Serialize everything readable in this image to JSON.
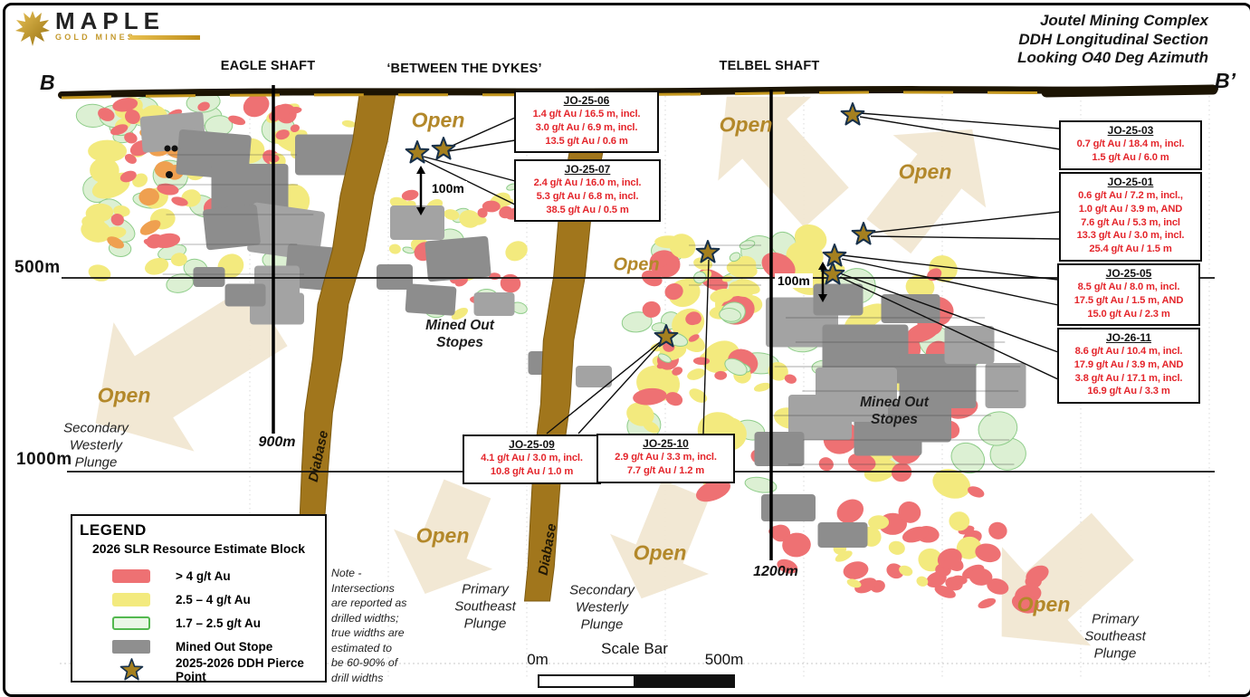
{
  "header": {
    "logo_text": "MAPLE",
    "logo_sub": "GOLD MINES",
    "title_lines": [
      "Joutel Mining Complex",
      "DDH Longitudinal Section",
      "Looking O40 Deg Azimuth"
    ]
  },
  "section_markers": {
    "left": "B",
    "right": "B’"
  },
  "shaft_labels": {
    "eagle": "EAGLE SHAFT",
    "between": "‘BETWEEN THE DYKES’",
    "telbel": "TELBEL SHAFT"
  },
  "depth_labels": {
    "d500": "500m",
    "d1000": "1000m",
    "eagle_bottom": "900m",
    "telbel_bottom": "1200m"
  },
  "scale_markers": {
    "left": "100m",
    "right": "100m"
  },
  "open_label": "Open",
  "diabase_label": "Diabase",
  "mined_out_label": "Mined Out\nStopes",
  "plunge_labels": {
    "secondary": "Secondary\nWesterly\nPlunge",
    "primary": "Primary\nSoutheast\nPlunge"
  },
  "drill_boxes": [
    {
      "id": "JO-25-06",
      "lines": [
        "1.4 g/t Au / 16.5 m, incl.",
        "3.0 g/t Au / 6.9 m, incl.",
        "13.5 g/t Au / 0.6 m"
      ]
    },
    {
      "id": "JO-25-07",
      "lines": [
        "2.4 g/t Au / 16.0 m, incl.",
        "5.3 g/t Au / 6.8 m, incl.",
        "38.5 g/t Au / 0.5 m"
      ]
    },
    {
      "id": "JO-25-03",
      "lines": [
        "0.7 g/t Au / 18.4 m, incl.",
        "1.5 g/t Au / 6.0 m"
      ]
    },
    {
      "id": "JO-25-01",
      "lines": [
        "0.6 g/t Au / 7.2 m, incl.,",
        "1.0 g/t Au / 3.9 m, AND",
        "7.6 g/t Au / 5.3 m, incl",
        "13.3 g/t Au / 3.0 m, incl.",
        "25.4 g/t Au / 1.5 m"
      ]
    },
    {
      "id": "JO-25-05",
      "lines": [
        "8.5 g/t Au / 8.0 m, incl.",
        "17.5 g/t Au / 1.5 m, AND",
        "15.0 g/t Au / 2.3 m"
      ]
    },
    {
      "id": "JO-26-11",
      "lines": [
        "8.6 g/t Au / 10.4 m, incl.",
        "17.9 g/t Au / 3.9 m, AND",
        "3.8 g/t Au / 17.1 m, incl.",
        "16.9 g/t Au / 3.3 m"
      ]
    },
    {
      "id": "JO-25-09",
      "lines": [
        "4.1 g/t Au / 3.0 m, incl.",
        "10.8 g/t Au / 1.0 m"
      ]
    },
    {
      "id": "JO-25-10",
      "lines": [
        "2.9 g/t Au / 3.3 m, incl.",
        "7.7 g/t Au / 1.2 m"
      ]
    }
  ],
  "legend": {
    "title": "LEGEND",
    "subtitle": "2026 SLR Resource Estimate Block",
    "items": [
      {
        "swatch": "red",
        "label": "> 4 g/t Au"
      },
      {
        "swatch": "yellow",
        "label": "2.5 – 4 g/t Au"
      },
      {
        "swatch": "green",
        "label": "1.7 – 2.5 g/t Au"
      },
      {
        "swatch": "gray",
        "label": "Mined Out Stope"
      },
      {
        "swatch": "star",
        "label": "2025-2026 DDH Pierce Point"
      }
    ]
  },
  "note": "Note -\nIntersections\nare reported as\ndrilled widths;\ntrue widths are\nestimated to\nbe 60-90% of\ndrill widths",
  "scale_bar": {
    "title": "Scale Bar",
    "start": "0m",
    "end": "500m"
  },
  "colors": {
    "high_grade": "#ee7173",
    "mid_grade": "#f3ea7e",
    "low_grade": "#dcf0d3",
    "low_grade_edge": "#8fcd8a",
    "orange_grade": "#efa050",
    "mined": "#8f8f8f",
    "dyke": "#a1761c",
    "accent_gold": "#b3882a",
    "red_text": "#e4252b",
    "star": "#a5801f",
    "arrow_tan": "#f1e7d2"
  }
}
